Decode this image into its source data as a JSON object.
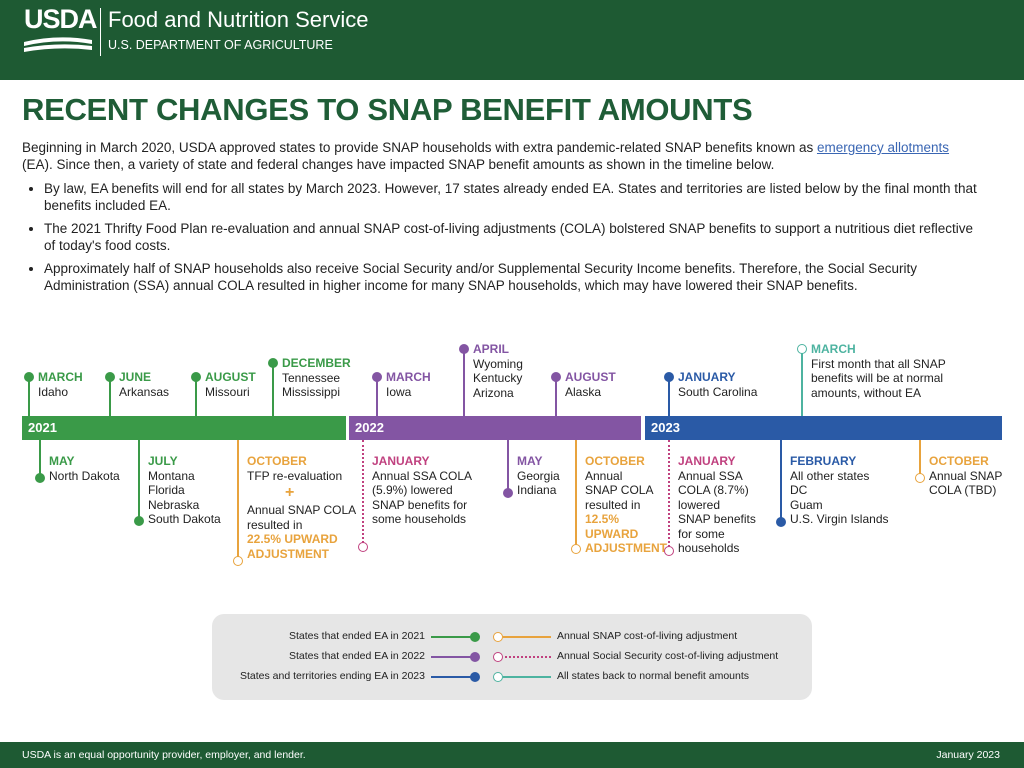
{
  "header": {
    "logo": "USDA",
    "agency": "Food and Nutrition Service",
    "department": "U.S. DEPARTMENT OF AGRICULTURE"
  },
  "title": "RECENT CHANGES TO SNAP BENEFIT AMOUNTS",
  "intro": {
    "before": "Beginning in March 2020, USDA approved states to provide SNAP households with extra pandemic-related SNAP benefits known as ",
    "link": "emergency allotments",
    "after": " (EA). Since then, a variety of state and federal changes have impacted SNAP benefit amounts as shown in the timeline below."
  },
  "bullets": [
    "By law, EA benefits will end for all states by March 2023. However, 17 states already ended EA. States and territories are listed below by the final month that benefits included EA.",
    "The 2021 Thrifty Food Plan re-evaluation and annual SNAP cost-of-living adjustments (COLA) bolstered SNAP benefits to support a nutritious diet reflective of today's food costs.",
    "Approximately half of SNAP households also receive Social Security and/or Supplemental Security Income benefits. Therefore, the Social Security Administration (SSA) annual COLA resulted in higher income for many SNAP households, which may have lowered their SNAP benefits."
  ],
  "timeline": {
    "years": [
      "2021",
      "2022",
      "2023"
    ],
    "above": [
      {
        "month": "MARCH",
        "lines": [
          "Idaho"
        ]
      },
      {
        "month": "JUNE",
        "lines": [
          "Arkansas"
        ]
      },
      {
        "month": "AUGUST",
        "lines": [
          "Missouri"
        ]
      },
      {
        "month": "DECEMBER",
        "lines": [
          "Tennessee",
          "Mississippi"
        ]
      },
      {
        "month": "MARCH",
        "lines": [
          "Iowa"
        ]
      },
      {
        "month": "APRIL",
        "lines": [
          "Wyoming",
          "Kentucky",
          "Arizona"
        ]
      },
      {
        "month": "AUGUST",
        "lines": [
          "Alaska"
        ]
      },
      {
        "month": "JANUARY",
        "lines": [
          "South Carolina"
        ]
      },
      {
        "month": "MARCH",
        "lines": [
          "First month that all SNAP",
          "benefits will be at normal",
          "amounts, without EA"
        ]
      }
    ],
    "below": [
      {
        "month": "MAY",
        "lines": [
          "North Dakota"
        ]
      },
      {
        "month": "JULY",
        "lines": [
          "Montana",
          "Florida",
          "Nebraska",
          "South Dakota"
        ]
      },
      {
        "month": "OCTOBER",
        "lines": [
          "TFP re-evaluation"
        ],
        "plus": "+",
        "lines_after": [
          "Annual SNAP COLA",
          "resulted in"
        ],
        "highlight": [
          "22.5% UPWARD",
          "ADJUSTMENT"
        ]
      },
      {
        "month": "JANUARY",
        "lines": [
          "Annual SSA COLA",
          "(5.9%) lowered",
          "SNAP benefits for",
          "some households"
        ]
      },
      {
        "month": "MAY",
        "lines": [
          "Georgia",
          "Indiana"
        ]
      },
      {
        "month": "OCTOBER",
        "lines": [
          "Annual",
          "SNAP COLA",
          "resulted in"
        ],
        "highlight": [
          "12.5%",
          "UPWARD",
          "ADJUSTMENT"
        ]
      },
      {
        "month": "JANUARY",
        "lines": [
          "Annual SSA",
          "COLA (8.7%)",
          "lowered",
          "SNAP benefits",
          "for some",
          "households"
        ]
      },
      {
        "month": "FEBRUARY",
        "lines": [
          "All other states",
          "DC",
          "Guam",
          "U.S. Virgin Islands"
        ]
      },
      {
        "month": "OCTOBER",
        "lines": [
          "Annual SNAP",
          "COLA (TBD)"
        ]
      }
    ]
  },
  "legend": {
    "items": [
      "States that ended EA in 2021",
      "States that ended EA in 2022",
      "States and territories ending EA in 2023",
      "Annual SNAP cost-of-living adjustment",
      "Annual Social Security cost-of-living adjustment",
      "All states back to normal benefit amounts"
    ]
  },
  "footer": {
    "left": "USDA is an equal opportunity provider, employer, and lender.",
    "right": "January 2023"
  }
}
